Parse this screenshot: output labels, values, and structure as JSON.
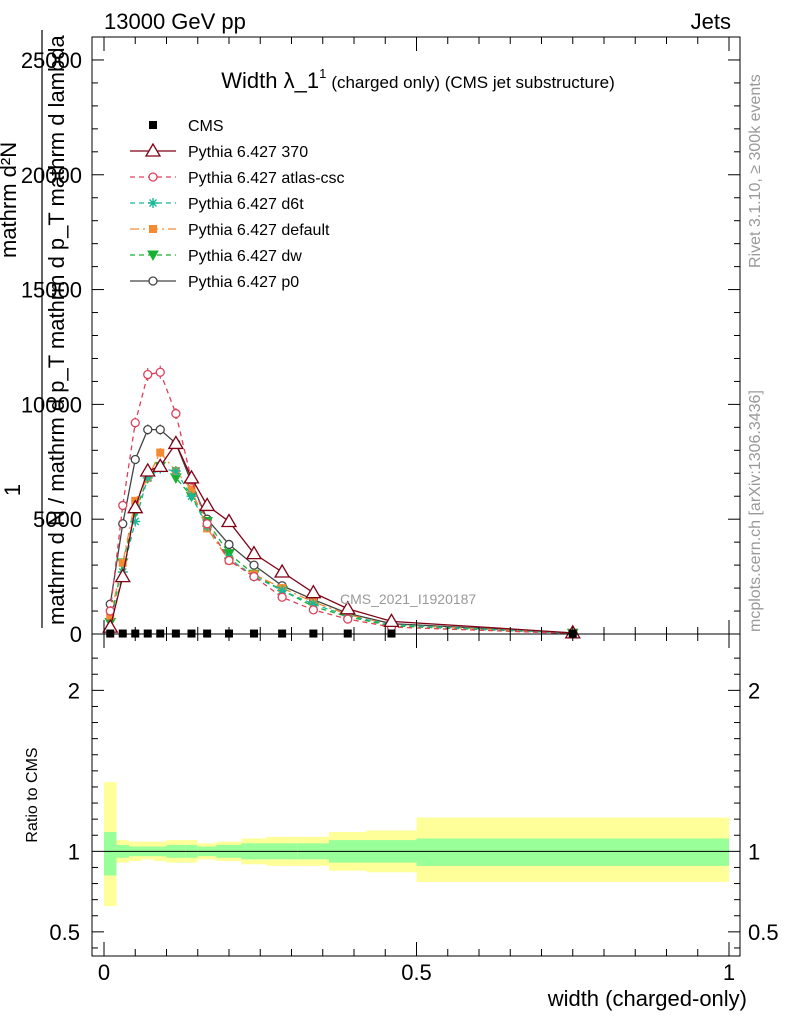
{
  "header": {
    "left": "13000 GeV pp",
    "right": "Jets"
  },
  "side_labels": {
    "rivet": "Rivet 3.1.10, ≥ 300k events",
    "mcplots": "mcplots.cern.ch [arXiv:1306.3436]"
  },
  "watermark": "CMS_2021_I1920187",
  "chart_data": [
    {
      "type": "line",
      "title_main": "Width λ_1",
      "title_sup": "1",
      "title_rest": "(charged only) (CMS jet substructure)",
      "ylabel_top": "1",
      "ylabel_mid": "mathrm d N / mathrm d p_T mathrm d p_T mathrm d lambda",
      "ylabel_num": "mathrm d²N",
      "xlim": [
        0,
        1
      ],
      "ylim": [
        0,
        26000
      ],
      "yticks": [
        0,
        5000,
        10000,
        15000,
        20000,
        25000
      ],
      "ytick_labels": [
        "0",
        "5000",
        "10000",
        "15000",
        "20000",
        "25000"
      ],
      "x": [
        0.01,
        0.03,
        0.05,
        0.07,
        0.09,
        0.115,
        0.14,
        0.165,
        0.2,
        0.24,
        0.285,
        0.335,
        0.39,
        0.46,
        0.75
      ],
      "series": [
        {
          "name": "CMS",
          "color": "#000000",
          "marker": "square",
          "dash": "",
          "values": [
            20,
            20,
            20,
            20,
            20,
            20,
            20,
            20,
            20,
            20,
            20,
            20,
            20,
            20,
            20
          ]
        },
        {
          "name": "Pythia 6.427 370",
          "color": "#800015",
          "marker": "triangle-open",
          "dash": "",
          "values": [
            300,
            2500,
            5500,
            7100,
            7300,
            8300,
            6800,
            5600,
            4900,
            3500,
            2700,
            1800,
            1100,
            550,
            50
          ]
        },
        {
          "name": "Pythia 6.427 atlas-csc",
          "color": "#e0405a",
          "marker": "circle-open",
          "dash": "5,4",
          "values": [
            1000,
            5600,
            9200,
            11300,
            11400,
            9600,
            6700,
            4800,
            3200,
            2500,
            1600,
            1050,
            650,
            300,
            20
          ]
        },
        {
          "name": "Pythia 6.427 d6t",
          "color": "#18b898",
          "marker": "star",
          "dash": "5,4",
          "values": [
            200,
            2700,
            4900,
            6800,
            7200,
            7100,
            6000,
            4700,
            3300,
            2500,
            1900,
            1300,
            800,
            400,
            30
          ]
        },
        {
          "name": "Pythia 6.427 default",
          "color": "#f58a30",
          "marker": "square",
          "dash": "9,4,2,4",
          "values": [
            800,
            3100,
            5800,
            6800,
            7900,
            7100,
            6300,
            4600,
            3200,
            2600,
            2000,
            1400,
            850,
            400,
            40
          ]
        },
        {
          "name": "Pythia 6.427 dw",
          "color": "#18b030",
          "marker": "triangle-down",
          "dash": "5,4",
          "values": [
            500,
            3100,
            5300,
            6800,
            7300,
            6800,
            6000,
            4900,
            3500,
            2600,
            1900,
            1200,
            750,
            350,
            30
          ]
        },
        {
          "name": "Pythia 6.427 p0",
          "color": "#444444",
          "marker": "circle-open",
          "dash": "",
          "values": [
            1300,
            4800,
            7600,
            8900,
            8900,
            8300,
            6600,
            5000,
            3900,
            3000,
            2100,
            1500,
            900,
            450,
            40
          ]
        }
      ]
    },
    {
      "type": "area",
      "ylabel": "Ratio to CMS",
      "xlabel": "width (charged-only)",
      "xlim": [
        0,
        1
      ],
      "ylim": [
        0.35,
        2.35
      ],
      "xticks": [
        0,
        0.5,
        1
      ],
      "xtick_labels": [
        "0",
        "0.5",
        "1"
      ],
      "yticks": [
        0.5,
        1,
        2
      ],
      "ytick_labels": [
        "0.5",
        "1",
        "2"
      ],
      "bin_edges": [
        0,
        0.02,
        0.04,
        0.06,
        0.08,
        0.1,
        0.13,
        0.15,
        0.18,
        0.22,
        0.26,
        0.31,
        0.36,
        0.42,
        0.5,
        1.0
      ],
      "band_outer": [
        [
          0.66,
          1.43
        ],
        [
          0.93,
          1.07
        ],
        [
          0.94,
          1.06
        ],
        [
          0.95,
          1.06
        ],
        [
          0.94,
          1.06
        ],
        [
          0.93,
          1.07
        ],
        [
          0.93,
          1.07
        ],
        [
          0.95,
          1.05
        ],
        [
          0.94,
          1.06
        ],
        [
          0.92,
          1.08
        ],
        [
          0.91,
          1.09
        ],
        [
          0.91,
          1.09
        ],
        [
          0.88,
          1.12
        ],
        [
          0.87,
          1.13
        ],
        [
          0.81,
          1.21
        ]
      ],
      "band_inner": [
        [
          0.85,
          1.12
        ],
        [
          0.96,
          1.04
        ],
        [
          0.97,
          1.03
        ],
        [
          0.97,
          1.03
        ],
        [
          0.97,
          1.03
        ],
        [
          0.96,
          1.04
        ],
        [
          0.96,
          1.04
        ],
        [
          0.97,
          1.03
        ],
        [
          0.96,
          1.04
        ],
        [
          0.95,
          1.05
        ],
        [
          0.95,
          1.05
        ],
        [
          0.95,
          1.05
        ],
        [
          0.93,
          1.07
        ],
        [
          0.93,
          1.07
        ],
        [
          0.91,
          1.08
        ]
      ],
      "colors": {
        "outer": "#ffff99",
        "inner": "#99ff99",
        "line": "#000000"
      }
    }
  ]
}
